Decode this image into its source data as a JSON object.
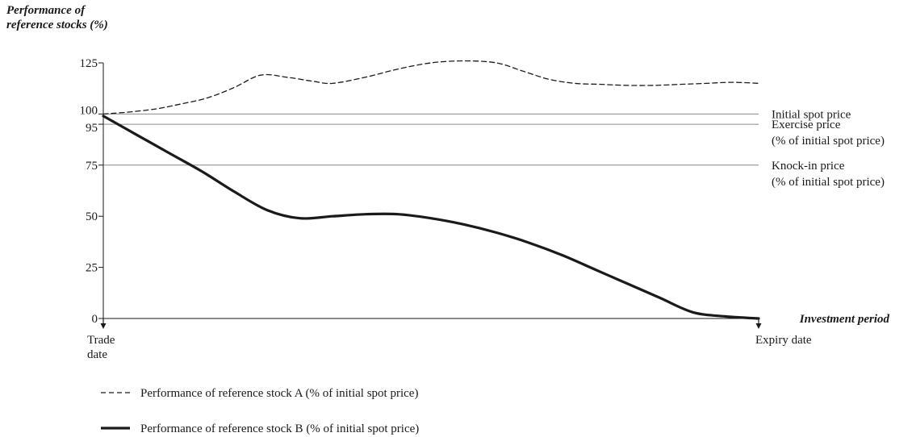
{
  "chart_data": {
    "type": "line",
    "title": "",
    "ylabel": [
      "Performance of",
      "reference stocks (%)"
    ],
    "xlabel": "Investment period",
    "ylim": [
      0,
      125
    ],
    "y_ticks": [
      0,
      25,
      50,
      75,
      95,
      100,
      125
    ],
    "xlim": [
      0,
      100
    ],
    "x_markers": [
      {
        "x": 0,
        "label": [
          "Trade",
          "date"
        ]
      },
      {
        "x": 100,
        "label": [
          "Expiry date"
        ]
      }
    ],
    "reference_lines": [
      {
        "y": 100,
        "label": [
          "Initial spot price"
        ]
      },
      {
        "y": 95,
        "label": [
          "Exercise price",
          "(% of initial spot price)"
        ]
      },
      {
        "y": 75,
        "label": [
          "Knock-in price",
          "(% of initial spot price)"
        ]
      }
    ],
    "series": [
      {
        "name": "Performance of reference stock A (% of initial spot price)",
        "style": "dashed",
        "color": "#1a1a1a",
        "x": [
          0,
          4,
          8,
          12,
          16,
          20,
          24,
          28,
          32,
          35,
          40,
          45,
          50,
          55,
          60,
          64,
          68,
          72,
          76,
          80,
          84,
          88,
          92,
          96,
          100
        ],
        "y": [
          100,
          101,
          102.5,
          105,
          108,
          113,
          119,
          118,
          116,
          115,
          118,
          122,
          125,
          126,
          125,
          121,
          117,
          115,
          114.5,
          114,
          114,
          114.5,
          115,
          115.5,
          115
        ]
      },
      {
        "name": "Performance of reference stock B (% of initial spot price)",
        "style": "solid",
        "color": "#1a1a1a",
        "x": [
          0,
          5,
          10,
          15,
          20,
          25,
          30,
          35,
          40,
          45,
          50,
          55,
          60,
          65,
          70,
          75,
          80,
          85,
          90,
          95,
          100
        ],
        "y": [
          99,
          90,
          81,
          72,
          62,
          53,
          49,
          50,
          51,
          51,
          49,
          46,
          42,
          37,
          31,
          24,
          17,
          10,
          3,
          1,
          0
        ]
      }
    ],
    "legend": {
      "position": "bottom-left"
    }
  }
}
